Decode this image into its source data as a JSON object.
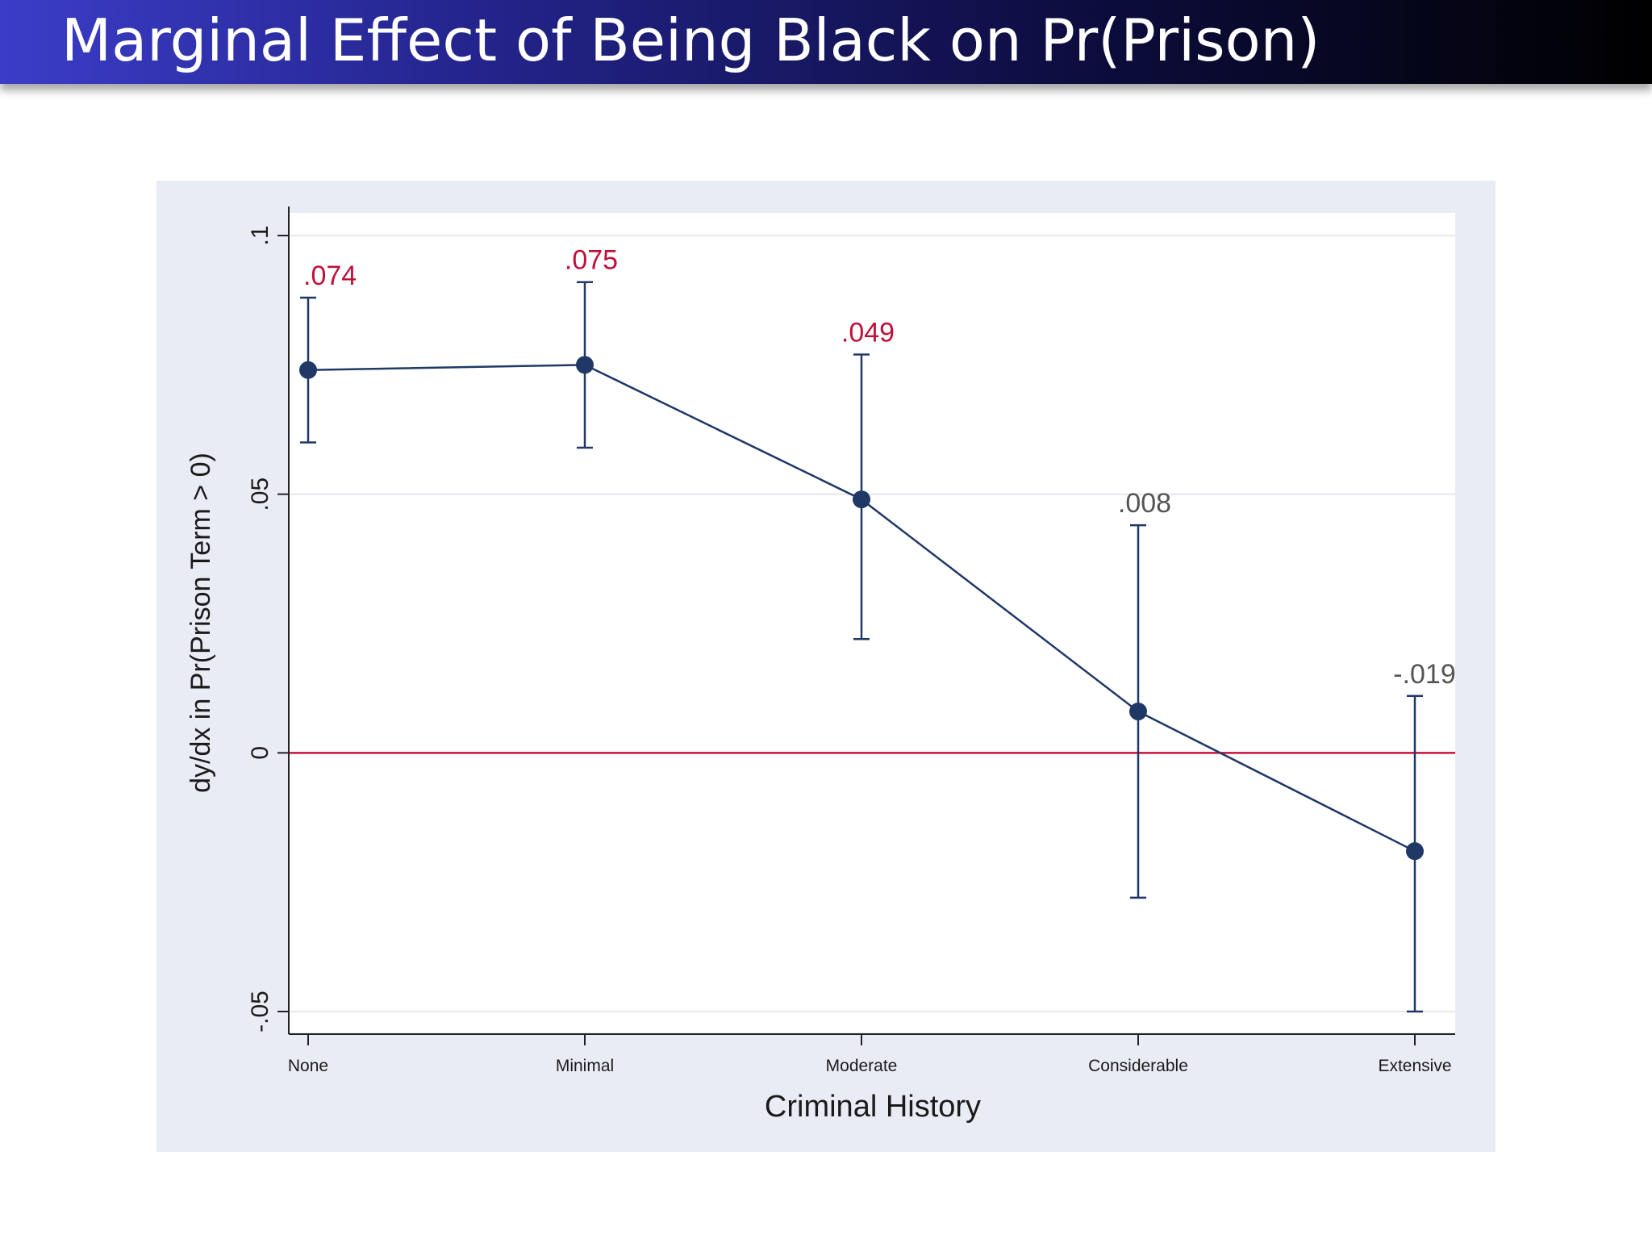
{
  "slide": {
    "title": "Marginal Effect of Being Black on Pr(Prison)"
  },
  "colors": {
    "series": "#1f3866",
    "label_significant": "#c0103a",
    "label_insignificant": "#555555",
    "reference_line": "#c8103c"
  },
  "chart_data": {
    "type": "line",
    "title": "",
    "xlabel": "Criminal History",
    "ylabel": "dy/dx in Pr(Prison Term > 0)",
    "categories": [
      "None",
      "Minimal",
      "Moderate",
      "Considerable",
      "Extensive"
    ],
    "series": [
      {
        "name": "dy/dx",
        "values": [
          0.074,
          0.075,
          0.049,
          0.008,
          -0.019
        ],
        "ci_lower": [
          0.06,
          0.059,
          0.022,
          -0.028,
          -0.05
        ],
        "ci_upper": [
          0.088,
          0.091,
          0.077,
          0.044,
          0.011
        ],
        "labels": [
          ".074",
          ".075",
          ".049",
          ".008",
          "-.019"
        ],
        "label_significant": [
          true,
          true,
          true,
          false,
          false
        ]
      }
    ],
    "ylim": [
      -0.05,
      0.1
    ],
    "yticks": [
      {
        "value": -0.05,
        "label": "-.05"
      },
      {
        "value": 0,
        "label": "0"
      },
      {
        "value": 0.05,
        "label": ".05"
      },
      {
        "value": 0.1,
        "label": ".1"
      }
    ],
    "reference_line": 0,
    "grid": true,
    "legend": "none"
  }
}
